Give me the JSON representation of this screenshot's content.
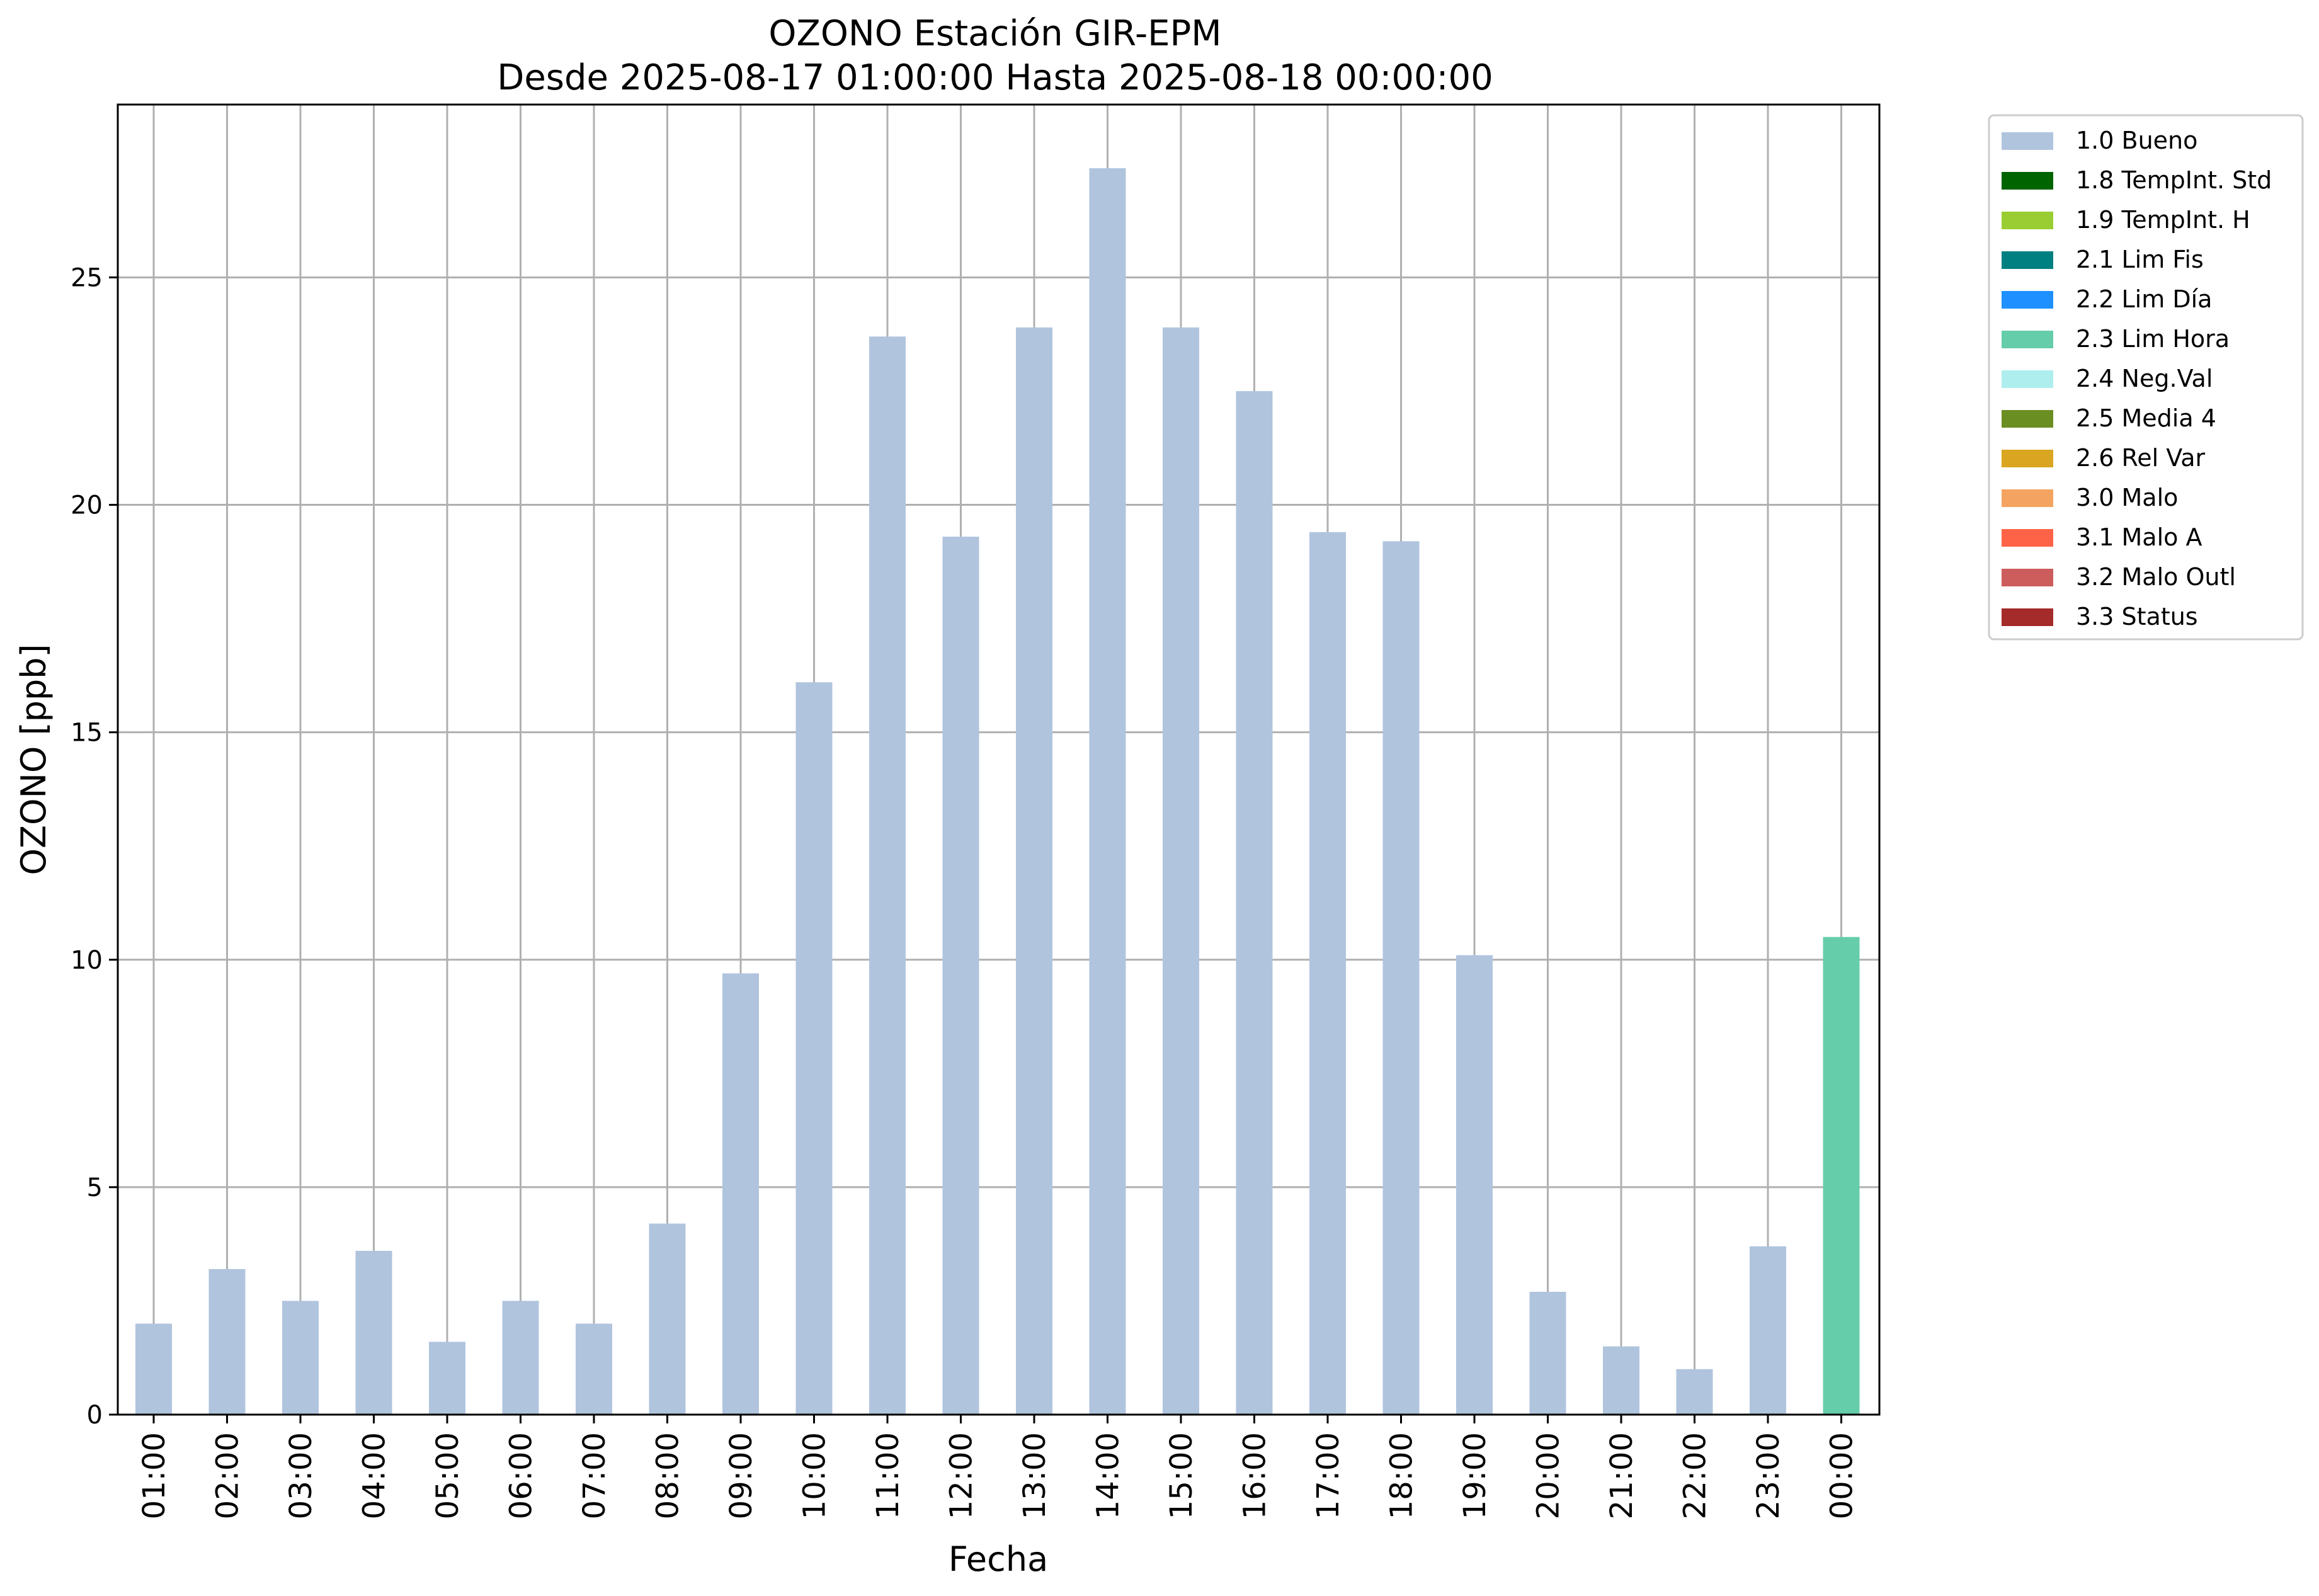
{
  "chart_data": {
    "type": "bar",
    "title_line1": "OZONO Estación GIR-EPM",
    "title_line2": "Desde 2025-08-17 01:00:00 Hasta 2025-08-18 00:00:00",
    "xlabel": "Fecha",
    "ylabel": "OZONO [ppb]",
    "ylim": [
      0,
      28.8
    ],
    "yticks": [
      0,
      5,
      10,
      15,
      20,
      25
    ],
    "grid": true,
    "legend_position": "outside-top-right",
    "categories": [
      "01:00",
      "02:00",
      "03:00",
      "04:00",
      "05:00",
      "06:00",
      "07:00",
      "08:00",
      "09:00",
      "10:00",
      "11:00",
      "12:00",
      "13:00",
      "14:00",
      "15:00",
      "16:00",
      "17:00",
      "18:00",
      "19:00",
      "20:00",
      "21:00",
      "22:00",
      "23:00",
      "00:00"
    ],
    "values": [
      2.0,
      3.2,
      2.5,
      3.6,
      1.6,
      2.5,
      2.0,
      4.2,
      9.7,
      16.1,
      23.7,
      19.3,
      23.9,
      27.4,
      23.9,
      22.5,
      19.4,
      19.2,
      10.1,
      2.7,
      1.5,
      1.0,
      3.7,
      10.5
    ],
    "flags": [
      "1.0 Bueno",
      "1.0 Bueno",
      "1.0 Bueno",
      "1.0 Bueno",
      "1.0 Bueno",
      "1.0 Bueno",
      "1.0 Bueno",
      "1.0 Bueno",
      "1.0 Bueno",
      "1.0 Bueno",
      "1.0 Bueno",
      "1.0 Bueno",
      "1.0 Bueno",
      "1.0 Bueno",
      "1.0 Bueno",
      "1.0 Bueno",
      "1.0 Bueno",
      "1.0 Bueno",
      "1.0 Bueno",
      "1.0 Bueno",
      "1.0 Bueno",
      "1.0 Bueno",
      "1.0 Bueno",
      "2.3 Lim Hora"
    ],
    "legend": [
      {
        "label": "1.0 Bueno",
        "color": "#b0c4de"
      },
      {
        "label": "1.8 TempInt. Std",
        "color": "#006400"
      },
      {
        "label": "1.9 TempInt. H",
        "color": "#9acd32"
      },
      {
        "label": "2.1 Lim Fis",
        "color": "#008080"
      },
      {
        "label": "2.2 Lim Día",
        "color": "#1e90ff"
      },
      {
        "label": "2.3 Lim Hora",
        "color": "#66cdaa"
      },
      {
        "label": "2.4 Neg.Val",
        "color": "#afeeee"
      },
      {
        "label": "2.5 Media 4",
        "color": "#6b8e23"
      },
      {
        "label": "2.6 Rel Var",
        "color": "#daa520"
      },
      {
        "label": "3.0 Malo",
        "color": "#f4a460"
      },
      {
        "label": "3.1 Malo A",
        "color": "#ff6347"
      },
      {
        "label": "3.2 Malo Outl",
        "color": "#cd5c5c"
      },
      {
        "label": "3.3 Status",
        "color": "#a52a2a"
      }
    ]
  }
}
